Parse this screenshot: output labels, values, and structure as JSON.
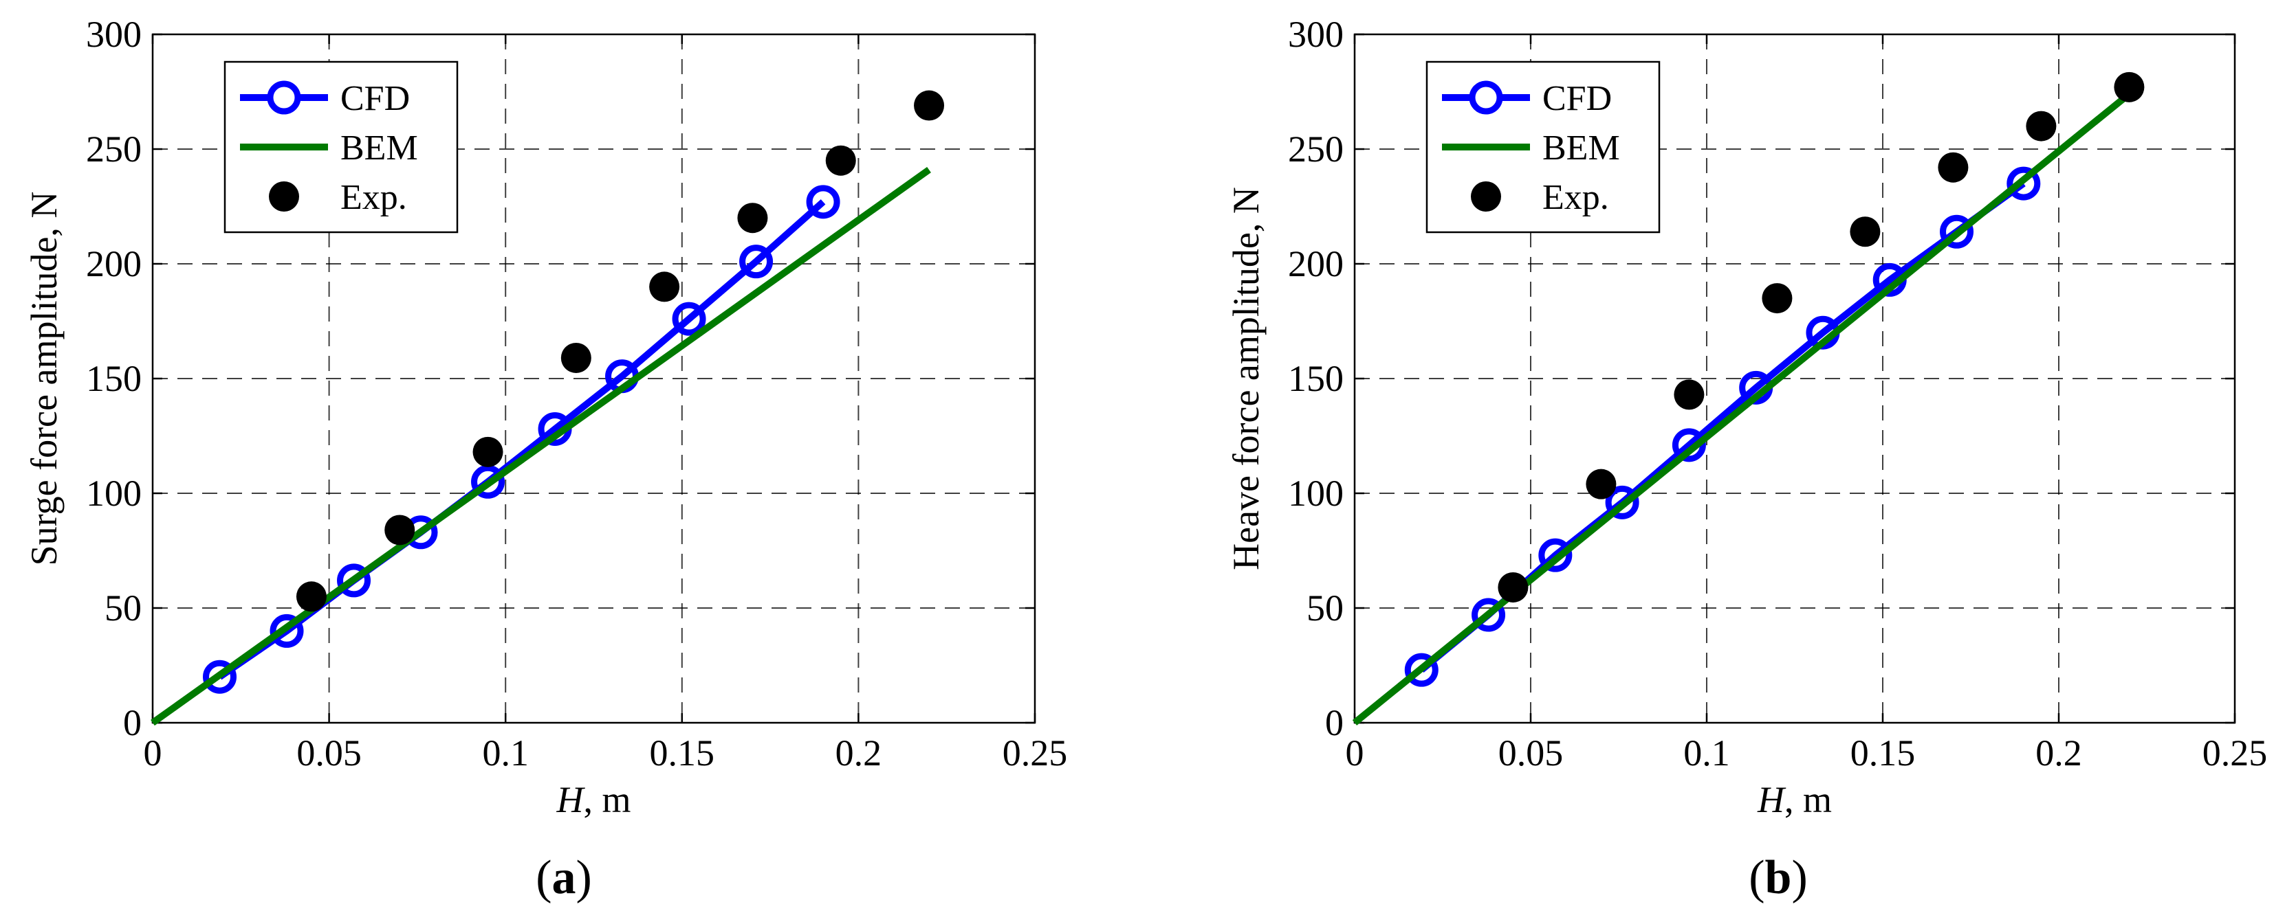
{
  "chart_data": [
    {
      "type": "line",
      "panel": "(a)",
      "caption_letter": "a",
      "xlabel_var": "H",
      "xlabel_unit": ", m",
      "ylabel": "Surge force amplitude, N",
      "xlim": [
        0,
        0.25
      ],
      "ylim": [
        0,
        300
      ],
      "xticks": [
        0,
        0.05,
        0.1,
        0.15,
        0.2,
        0.25
      ],
      "xtick_labels": [
        "0",
        "0.05",
        "0.1",
        "0.15",
        "0.2",
        "0.25"
      ],
      "yticks": [
        0,
        50,
        100,
        150,
        200,
        250,
        300
      ],
      "ytick_labels": [
        "0",
        "50",
        "100",
        "150",
        "200",
        "250",
        "300"
      ],
      "grid": true,
      "legend_position": "top-left",
      "series": [
        {
          "name": "CFD",
          "style": "line-open-circle",
          "color": "#0000ff",
          "x": [
            0.019,
            0.038,
            0.057,
            0.076,
            0.095,
            0.114,
            0.133,
            0.152,
            0.171,
            0.19
          ],
          "y": [
            20,
            40,
            62,
            83,
            105,
            128,
            151,
            176,
            201,
            227
          ]
        },
        {
          "name": "BEM",
          "style": "line",
          "color": "#007a00",
          "x": [
            0,
            0.22
          ],
          "y": [
            0,
            241
          ]
        },
        {
          "name": "Exp.",
          "style": "filled-circle",
          "color": "#000000",
          "x": [
            0.045,
            0.07,
            0.095,
            0.12,
            0.145,
            0.17,
            0.195,
            0.22
          ],
          "y": [
            55,
            84,
            118,
            159,
            190,
            220,
            245,
            269
          ]
        }
      ]
    },
    {
      "type": "line",
      "panel": "(b)",
      "caption_letter": "b",
      "xlabel_var": "H",
      "xlabel_unit": ", m",
      "ylabel": "Heave force amplitude, N",
      "xlim": [
        0,
        0.25
      ],
      "ylim": [
        0,
        300
      ],
      "xticks": [
        0,
        0.05,
        0.1,
        0.15,
        0.2,
        0.25
      ],
      "xtick_labels": [
        "0",
        "0.05",
        "0.1",
        "0.15",
        "0.2",
        "0.25"
      ],
      "yticks": [
        0,
        50,
        100,
        150,
        200,
        250,
        300
      ],
      "ytick_labels": [
        "0",
        "50",
        "100",
        "150",
        "200",
        "250",
        "300"
      ],
      "grid": true,
      "legend_position": "top-left",
      "series": [
        {
          "name": "CFD",
          "style": "line-open-circle",
          "color": "#0000ff",
          "x": [
            0.019,
            0.038,
            0.057,
            0.076,
            0.095,
            0.114,
            0.133,
            0.152,
            0.171,
            0.19
          ],
          "y": [
            23,
            47,
            73,
            96,
            121,
            146,
            170,
            193,
            214,
            235
          ]
        },
        {
          "name": "BEM",
          "style": "line",
          "color": "#007a00",
          "x": [
            0,
            0.22
          ],
          "y": [
            0,
            274
          ]
        },
        {
          "name": "Exp.",
          "style": "filled-circle",
          "color": "#000000",
          "x": [
            0.045,
            0.07,
            0.095,
            0.12,
            0.145,
            0.17,
            0.195,
            0.22
          ],
          "y": [
            59,
            104,
            143,
            185,
            214,
            242,
            260,
            277
          ]
        }
      ]
    }
  ]
}
